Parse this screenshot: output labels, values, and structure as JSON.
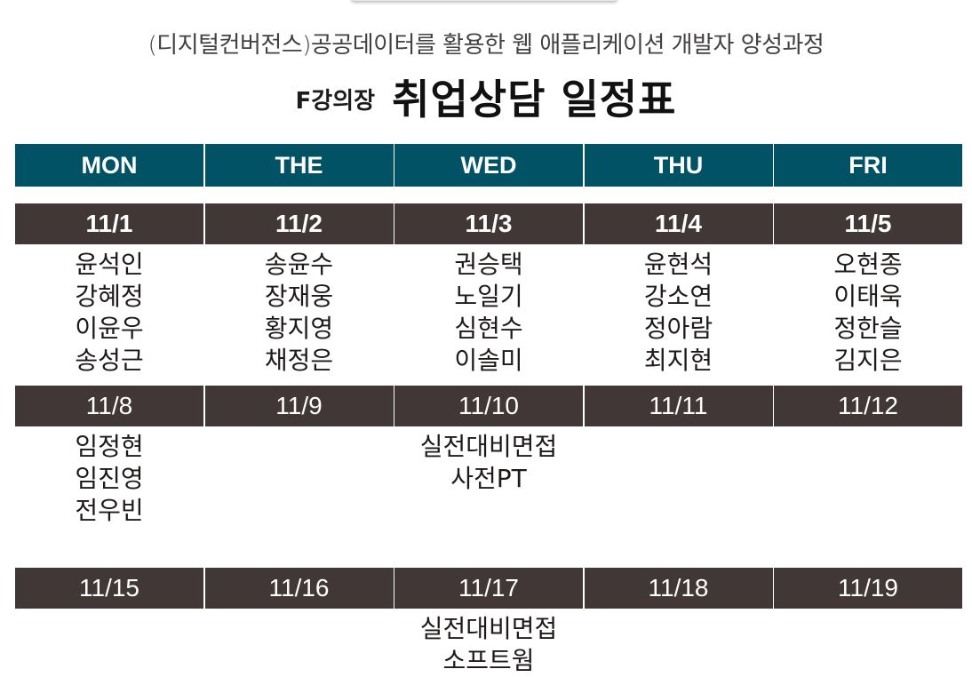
{
  "header": {
    "subtitle": "(디지털컨버전스)공공데이터를 활용한 웹 애플리케이션 개발자 양성과정",
    "room": "F강의장",
    "title": "취업상담 일정표"
  },
  "days": [
    "MON",
    "THE",
    "WED",
    "THU",
    "FRI"
  ],
  "weeks": [
    {
      "dates": [
        "11/1",
        "11/2",
        "11/3",
        "11/4",
        "11/5"
      ],
      "entries": [
        [
          "윤석인",
          "강혜정",
          "이윤우",
          "송성근"
        ],
        [
          "송윤수",
          "장재웅",
          "황지영",
          "채정은"
        ],
        [
          "권승택",
          "노일기",
          "심현수",
          "이솔미"
        ],
        [
          "윤현석",
          "강소연",
          "정아람",
          "최지현"
        ],
        [
          "오현종",
          "이태욱",
          "정한슬",
          "김지은"
        ]
      ]
    },
    {
      "dates": [
        "11/8",
        "11/9",
        "11/10",
        "11/11",
        "11/12"
      ],
      "entries": [
        [
          "임정현",
          "임진영",
          "전우빈"
        ],
        [],
        [
          "실전대비면접",
          "사전PT"
        ],
        [],
        []
      ]
    },
    {
      "dates": [
        "11/15",
        "11/16",
        "11/17",
        "11/18",
        "11/19"
      ],
      "entries": [
        [],
        [],
        [
          "실전대비면접",
          "소프트웜"
        ],
        [],
        []
      ]
    }
  ],
  "colors": {
    "day_header_bg": "#025266",
    "date_header_bg": "#403736",
    "text": "#1f1a19"
  }
}
